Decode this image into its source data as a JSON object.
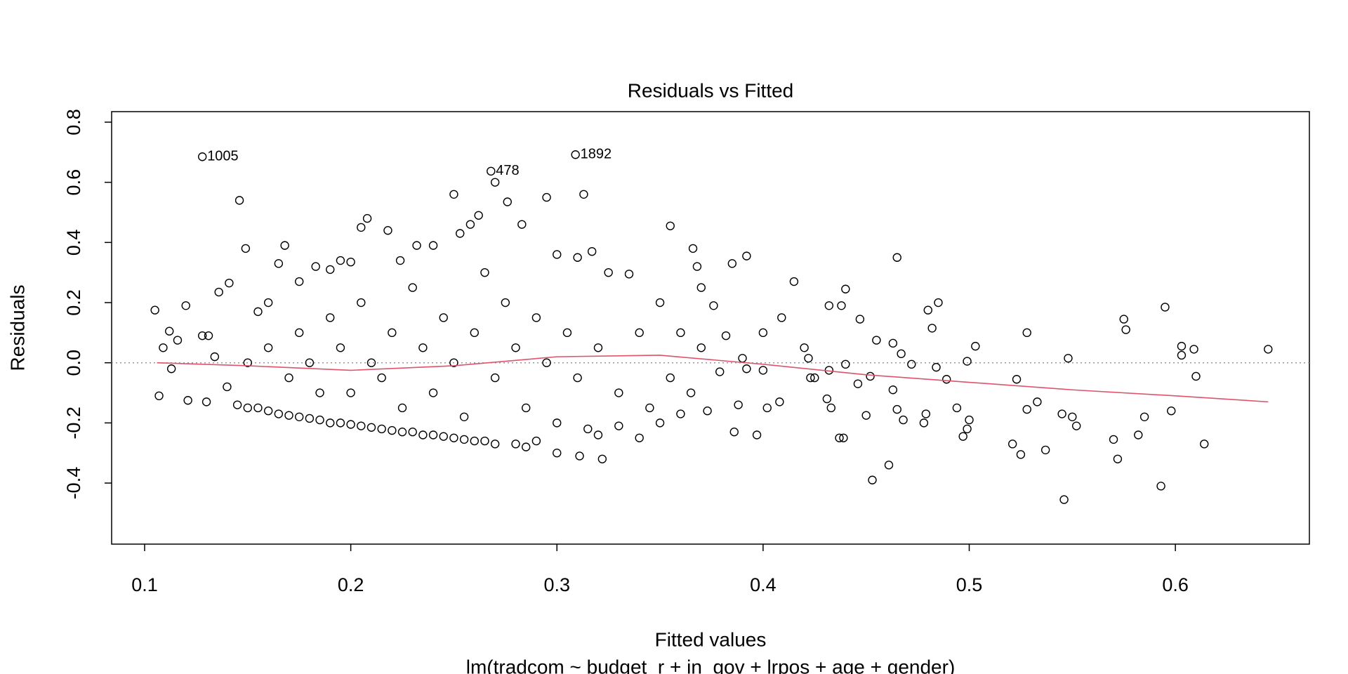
{
  "chart_data": {
    "type": "scatter",
    "title": "Residuals vs Fitted",
    "x_label": "Fitted values",
    "subtitle": "lm(tradcom ~ budget_r + in_gov + lrpos + age + gender)",
    "y_label": "Residuals",
    "xlim": [
      0.084,
      0.665
    ],
    "ylim": [
      -0.603,
      0.835
    ],
    "xticks": [
      0.1,
      0.2,
      0.3,
      0.4,
      0.5,
      0.6
    ],
    "yticks": [
      -0.4,
      -0.2,
      {
        "value": 0,
        "label": "0.0"
      },
      0.2,
      0.4,
      0.6,
      0.8
    ],
    "hline": 0,
    "color": "#000000",
    "x": [
      0.128,
      0.268,
      0.309,
      0.355,
      0.366,
      0.368,
      0.37,
      0.385,
      0.392,
      0.415,
      0.44,
      0.465,
      0.485,
      0.48,
      0.432,
      0.438,
      0.447,
      0.409,
      0.4,
      0.455,
      0.463,
      0.467,
      0.482,
      0.503,
      0.528,
      0.548,
      0.575,
      0.576,
      0.595,
      0.603,
      0.609,
      0.603,
      0.645,
      0.61,
      0.598,
      0.614,
      0.593,
      0.546,
      0.57,
      0.572,
      0.582,
      0.585,
      0.55,
      0.552,
      0.545,
      0.537,
      0.533,
      0.528,
      0.523,
      0.521,
      0.525,
      0.5,
      0.499,
      0.497,
      0.494,
      0.489,
      0.484,
      0.479,
      0.478,
      0.472,
      0.468,
      0.465,
      0.463,
      0.461,
      0.453,
      0.452,
      0.45,
      0.446,
      0.44,
      0.437,
      0.439,
      0.433,
      0.431,
      0.432,
      0.425,
      0.423,
      0.422,
      0.42,
      0.408,
      0.402,
      0.4,
      0.397,
      0.392,
      0.386,
      0.388,
      0.379,
      0.373,
      0.382,
      0.376,
      0.39,
      0.499,
      0.105,
      0.107,
      0.109,
      0.112,
      0.113,
      0.116,
      0.12,
      0.121,
      0.128,
      0.131,
      0.134,
      0.136,
      0.141,
      0.146,
      0.149,
      0.14,
      0.13,
      0.145,
      0.15,
      0.155,
      0.16,
      0.165,
      0.17,
      0.175,
      0.18,
      0.185,
      0.19,
      0.195,
      0.2,
      0.205,
      0.21,
      0.215,
      0.22,
      0.225,
      0.23,
      0.235,
      0.24,
      0.245,
      0.25,
      0.255,
      0.26,
      0.265,
      0.27,
      0.28,
      0.285,
      0.29,
      0.3,
      0.311,
      0.322,
      0.315,
      0.32,
      0.155,
      0.16,
      0.165,
      0.168,
      0.175,
      0.183,
      0.19,
      0.195,
      0.2,
      0.205,
      0.208,
      0.218,
      0.224,
      0.232,
      0.24,
      0.25,
      0.253,
      0.258,
      0.262,
      0.27,
      0.276,
      0.283,
      0.295,
      0.313,
      0.31,
      0.317,
      0.325,
      0.335,
      0.3,
      0.15,
      0.16,
      0.17,
      0.175,
      0.18,
      0.185,
      0.19,
      0.195,
      0.2,
      0.205,
      0.21,
      0.215,
      0.22,
      0.225,
      0.23,
      0.235,
      0.24,
      0.245,
      0.25,
      0.255,
      0.26,
      0.265,
      0.27,
      0.275,
      0.28,
      0.285,
      0.29,
      0.295,
      0.3,
      0.305,
      0.31,
      0.32,
      0.33,
      0.34,
      0.345,
      0.35,
      0.355,
      0.36,
      0.365,
      0.37,
      0.34,
      0.33,
      0.35,
      0.36
    ],
    "values": [
      0.685,
      0.637,
      0.692,
      0.455,
      0.38,
      0.32,
      0.25,
      0.33,
      0.355,
      0.27,
      0.245,
      0.35,
      0.2,
      0.175,
      0.19,
      0.19,
      0.145,
      0.15,
      0.1,
      0.075,
      0.065,
      0.03,
      0.115,
      0.055,
      0.1,
      0.015,
      0.145,
      0.11,
      0.185,
      0.055,
      0.045,
      0.025,
      0.045,
      -0.045,
      -0.16,
      -0.27,
      -0.41,
      -0.455,
      -0.255,
      -0.32,
      -0.24,
      -0.18,
      -0.18,
      -0.21,
      -0.17,
      -0.29,
      -0.13,
      -0.155,
      -0.055,
      -0.27,
      -0.305,
      -0.19,
      -0.22,
      -0.245,
      -0.15,
      -0.055,
      -0.015,
      -0.17,
      -0.2,
      -0.005,
      -0.19,
      -0.155,
      -0.09,
      -0.34,
      -0.39,
      -0.045,
      -0.175,
      -0.07,
      -0.005,
      -0.25,
      -0.25,
      -0.15,
      -0.12,
      -0.025,
      -0.05,
      -0.05,
      0.015,
      0.05,
      -0.13,
      -0.15,
      -0.025,
      -0.24,
      -0.02,
      -0.23,
      -0.14,
      -0.03,
      -0.16,
      0.09,
      0.19,
      0.015,
      0.005,
      0.175,
      -0.11,
      0.05,
      0.105,
      -0.02,
      0.075,
      0.19,
      -0.125,
      0.09,
      0.09,
      0.02,
      0.235,
      0.265,
      0.54,
      0.38,
      -0.08,
      -0.13,
      -0.14,
      -0.15,
      -0.15,
      -0.16,
      -0.17,
      -0.175,
      -0.18,
      -0.185,
      -0.19,
      -0.2,
      -0.2,
      -0.205,
      -0.21,
      -0.215,
      -0.22,
      -0.225,
      -0.23,
      -0.23,
      -0.24,
      -0.24,
      -0.245,
      -0.25,
      -0.255,
      -0.26,
      -0.26,
      -0.27,
      -0.27,
      -0.28,
      -0.26,
      -0.3,
      -0.31,
      -0.32,
      -0.22,
      -0.24,
      0.17,
      0.2,
      0.33,
      0.39,
      0.27,
      0.32,
      0.31,
      0.34,
      0.335,
      0.45,
      0.48,
      0.44,
      0.34,
      0.39,
      0.39,
      0.56,
      0.43,
      0.46,
      0.49,
      0.6,
      0.535,
      0.46,
      0.55,
      0.56,
      0.35,
      0.37,
      0.3,
      0.295,
      0.36,
      0.0,
      0.05,
      -0.05,
      0.1,
      0.0,
      -0.1,
      0.15,
      0.05,
      -0.1,
      0.2,
      0.0,
      -0.05,
      0.1,
      -0.15,
      0.25,
      0.05,
      -0.1,
      0.15,
      0.0,
      -0.18,
      0.1,
      0.3,
      -0.05,
      0.2,
      0.05,
      -0.15,
      0.15,
      0.0,
      -0.2,
      0.1,
      -0.05,
      0.05,
      -0.1,
      0.1,
      -0.15,
      0.2,
      -0.05,
      0.1,
      -0.1,
      0.05,
      -0.25,
      -0.21,
      -0.2,
      -0.17
    ],
    "annotations": [
      {
        "text": "1005",
        "x": 0.128,
        "y": 0.685
      },
      {
        "text": "478",
        "x": 0.268,
        "y": 0.637
      },
      {
        "text": "1892",
        "x": 0.309,
        "y": 0.692
      }
    ],
    "smooth": {
      "color": "#DF536B",
      "x": [
        0.106,
        0.15,
        0.2,
        0.25,
        0.3,
        0.35,
        0.4,
        0.45,
        0.5,
        0.55,
        0.6,
        0.645
      ],
      "y": [
        0.0,
        -0.01,
        -0.025,
        -0.01,
        0.02,
        0.025,
        -0.005,
        -0.04,
        -0.065,
        -0.09,
        -0.11,
        -0.13
      ]
    }
  }
}
